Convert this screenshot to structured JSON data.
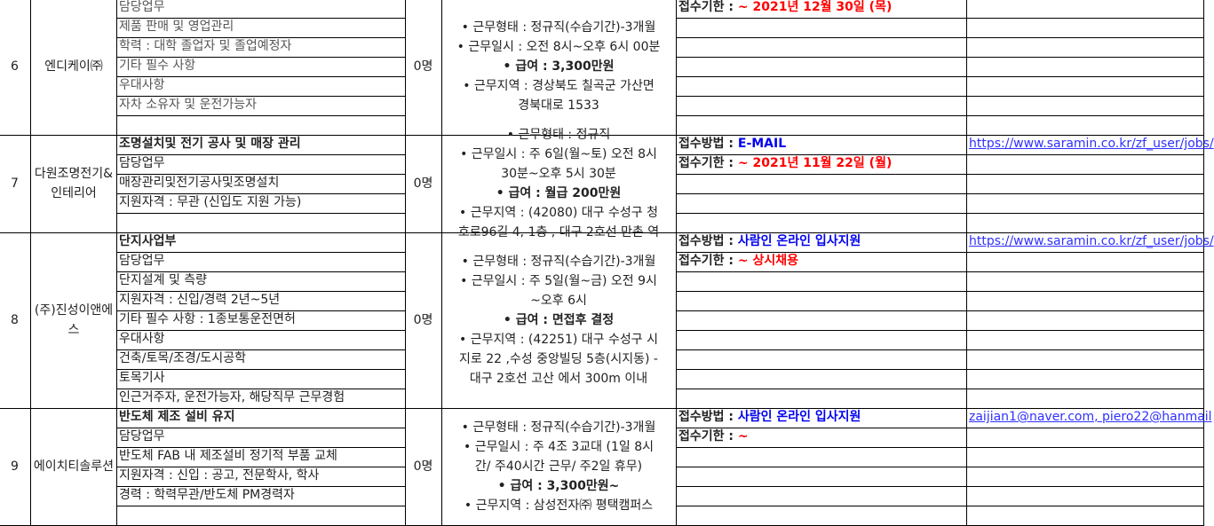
{
  "rows": [
    {
      "no": "6",
      "company": "엔디케이㈜",
      "count": "0명",
      "subrows": 7,
      "tasks": [
        {
          "t": "담당업무"
        },
        {
          "t": "제품 판매 및 영업관리"
        },
        {
          "t": "학력 : 대학 졸업자 및 졸업예정자"
        },
        {
          "t": "기타 필수 사항"
        },
        {
          "t": "우대사항"
        },
        {
          "t": "자차 소유자 및 운전가능자"
        },
        {
          "t": ""
        }
      ],
      "conditions": [
        {
          "t": "• 근무형태 : 정규직(수습기간)-3개월"
        },
        {
          "t": "• 근무일시 : 오전 8시~오후 6시 00분"
        },
        {
          "t": "• 급여 : 3,300만원",
          "b": true
        },
        {
          "t": "• 근무지역 : 경상북도 칠곡군 가산면"
        },
        {
          "t": "경북대로 1533"
        }
      ],
      "apply": [
        {
          "label": "접수기한 : ",
          "value": " ~ 2021년 12월 30일 (목)",
          "color": "red"
        }
      ],
      "url": ""
    },
    {
      "no": "7",
      "company": "다원조명전기&인테리어",
      "count": "0명",
      "subrows": 5,
      "tasks": [
        {
          "t": "조명설치및 전기 공사 및 매장 관리",
          "b": true
        },
        {
          "t": "담당업무"
        },
        {
          "t": "매장관리및전기공사및조명설치"
        },
        {
          "t": "지원자격 : 무관 (신입도 지원 가능)"
        },
        {
          "t": ""
        }
      ],
      "conditions": [
        {
          "t": "• 근무형태 : 정규직"
        },
        {
          "t": "• 근무일시 : 주 6일(월~토) 오전 8시"
        },
        {
          "t": "30분~오후 5시 30분"
        },
        {
          "t": "• 급여 : 월급 200만원",
          "b": true
        },
        {
          "t": "• 근무지역 : (42080) 대구 수성구 청"
        },
        {
          "t": "호로96길 4, 1층 , 대구 2호선 만촌 역"
        }
      ],
      "apply": [
        {
          "label": "접수방법 : ",
          "value": "E-MAIL",
          "color": "blue"
        },
        {
          "label": "접수기한 : ",
          "value": "~ 2021년 11월 22일 (월)",
          "color": "red"
        }
      ],
      "url": "https://www.saramin.co.kr/zf_user/jobs/"
    },
    {
      "no": "8",
      "company": "(주)진성이앤에스",
      "count": "0명",
      "subrows": 9,
      "tasks": [
        {
          "t": "단지사업부",
          "b": true
        },
        {
          "t": "담당업무"
        },
        {
          "t": "단지설계 및 측량"
        },
        {
          "t": "지원자격 : 신입/경력 2년~5년"
        },
        {
          "t": "기타 필수 사항 : 1종보통운전면허"
        },
        {
          "t": "우대사항"
        },
        {
          "t": "건축/토목/조경/도시공학"
        },
        {
          "t": "토목기사"
        },
        {
          "t": "인근거주자, 운전가능자, 해당직무 근무경험"
        }
      ],
      "conditions": [
        {
          "t": "• 근무형태 : 정규직(수습기간)-3개월"
        },
        {
          "t": "• 근무일시 : 주 5일(월~금) 오전 9시"
        },
        {
          "t": "~오후 6시"
        },
        {
          "t": "• 급여 : 면접후 결정",
          "b": true
        },
        {
          "t": "• 근무지역 : (42251) 대구 수성구 시"
        },
        {
          "t": "지로 22 ,수성 중앙빌딩 5층(시지동) -"
        },
        {
          "t": "대구 2호선 고산 에서 300m 이내"
        }
      ],
      "apply": [
        {
          "label": "접수방법 : ",
          "value": "사람인 온라인 입사지원",
          "color": "blue"
        },
        {
          "label": "접수기한 : ",
          "value": "~ 상시채용",
          "color": "red"
        }
      ],
      "url": "https://www.saramin.co.kr/zf_user/jobs/"
    },
    {
      "no": "9",
      "company": "에이치티솔루션",
      "count": "0명",
      "subrows": 6,
      "tasks": [
        {
          "t": "반도체 제조 설비 유지",
          "b": true
        },
        {
          "t": "담당업무"
        },
        {
          "t": "반도체 FAB 내 제조설비 정기적 부품 교체"
        },
        {
          "t": "지원자격 : 신입 : 공고, 전문학사, 학사"
        },
        {
          "t": "경력 : 학력무관/반도체 PM경력자"
        },
        {
          "t": ""
        }
      ],
      "conditions": [
        {
          "t": "• 근무형태 : 정규직(수습기간)-3개월"
        },
        {
          "t": "• 근무일시 : 주 4조 3교대 (1일 8시"
        },
        {
          "t": "간/ 주40시간 근무/ 주2일 휴무)"
        },
        {
          "t": "• 급여 : 3,300만원~",
          "b": true
        },
        {
          "t": "• 근무지역 : 삼성전자㈜ 평택캠퍼스"
        }
      ],
      "apply": [
        {
          "label": "접수방법 : ",
          "value": "사람인 온라인 입사지원",
          "color": "blue"
        },
        {
          "label": "접수기한 : ",
          "value": "~",
          "color": "red"
        }
      ],
      "url": "zaijian1@naver.com, piero22@hanmail"
    }
  ]
}
